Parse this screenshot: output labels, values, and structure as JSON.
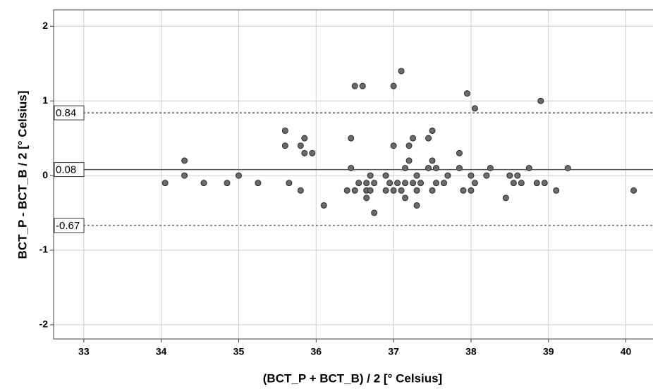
{
  "chart_data": {
    "type": "scatter",
    "x_label": "(BCT_P + BCT_B) / 2 [° Celsius]",
    "y_label": "BCT_P - BCT_B / 2 [° Celsius]",
    "x": [
      34.05,
      34.3,
      34.3,
      34.55,
      34.85,
      35.0,
      35.25,
      35.6,
      35.6,
      35.65,
      35.8,
      35.8,
      35.85,
      35.85,
      35.95,
      36.1,
      36.4,
      36.45,
      36.45,
      36.5,
      36.5,
      36.55,
      36.6,
      36.65,
      36.65,
      36.65,
      36.7,
      36.7,
      36.75,
      36.75,
      36.9,
      36.9,
      36.95,
      37.0,
      37.0,
      37.0,
      37.05,
      37.1,
      37.1,
      37.15,
      37.15,
      37.15,
      37.2,
      37.2,
      37.25,
      37.25,
      37.3,
      37.3,
      37.3,
      37.35,
      37.45,
      37.45,
      37.5,
      37.5,
      37.5,
      37.55,
      37.55,
      37.65,
      37.7,
      37.85,
      37.85,
      37.9,
      37.95,
      38.0,
      38.0,
      38.05,
      38.05,
      38.2,
      38.25,
      38.45,
      38.5,
      38.55,
      38.6,
      38.65,
      38.75,
      38.85,
      38.9,
      38.95,
      39.1,
      39.25,
      40.1
    ],
    "values": [
      -0.1,
      0.2,
      0,
      -0.1,
      -0.1,
      0,
      -0.1,
      0.6,
      0.4,
      -0.1,
      0.4,
      -0.2,
      0.5,
      0.3,
      0.3,
      -0.4,
      -0.2,
      0.5,
      0.1,
      -0.2,
      1.2,
      -0.1,
      1.2,
      -0.2,
      -0.3,
      -0.1,
      0,
      -0.2,
      -0.5,
      -0.1,
      0,
      -0.2,
      -0.1,
      1.2,
      0.4,
      -0.2,
      -0.1,
      1.4,
      -0.2,
      0.1,
      -0.1,
      -0.3,
      0.4,
      0.2,
      0.5,
      -0.1,
      0,
      -0.2,
      -0.4,
      -0.1,
      0.5,
      0.1,
      0.6,
      0.2,
      -0.2,
      0.1,
      -0.1,
      -0.1,
      0,
      0.3,
      0.1,
      -0.2,
      1.1,
      0,
      -0.2,
      0.9,
      -0.1,
      0,
      0.1,
      -0.3,
      0,
      -0.1,
      0,
      -0.1,
      0.1,
      -0.1,
      1.0,
      -0.1,
      -0.2,
      0.1,
      -0.2
    ],
    "color": "#6b6b6b",
    "reference_lines": [
      {
        "value": 0.84,
        "style": "dashed"
      },
      {
        "value": 0.08,
        "style": "solid"
      },
      {
        "value": -0.67,
        "style": "dashed"
      }
    ],
    "xlim": [
      32.61,
      40.35
    ],
    "ylim": [
      -2.19,
      2.22
    ],
    "xticks": [
      33,
      34,
      35,
      36,
      37,
      38,
      39,
      40
    ],
    "yticks": [
      -2,
      -1,
      0,
      1,
      2
    ],
    "grid": true
  }
}
